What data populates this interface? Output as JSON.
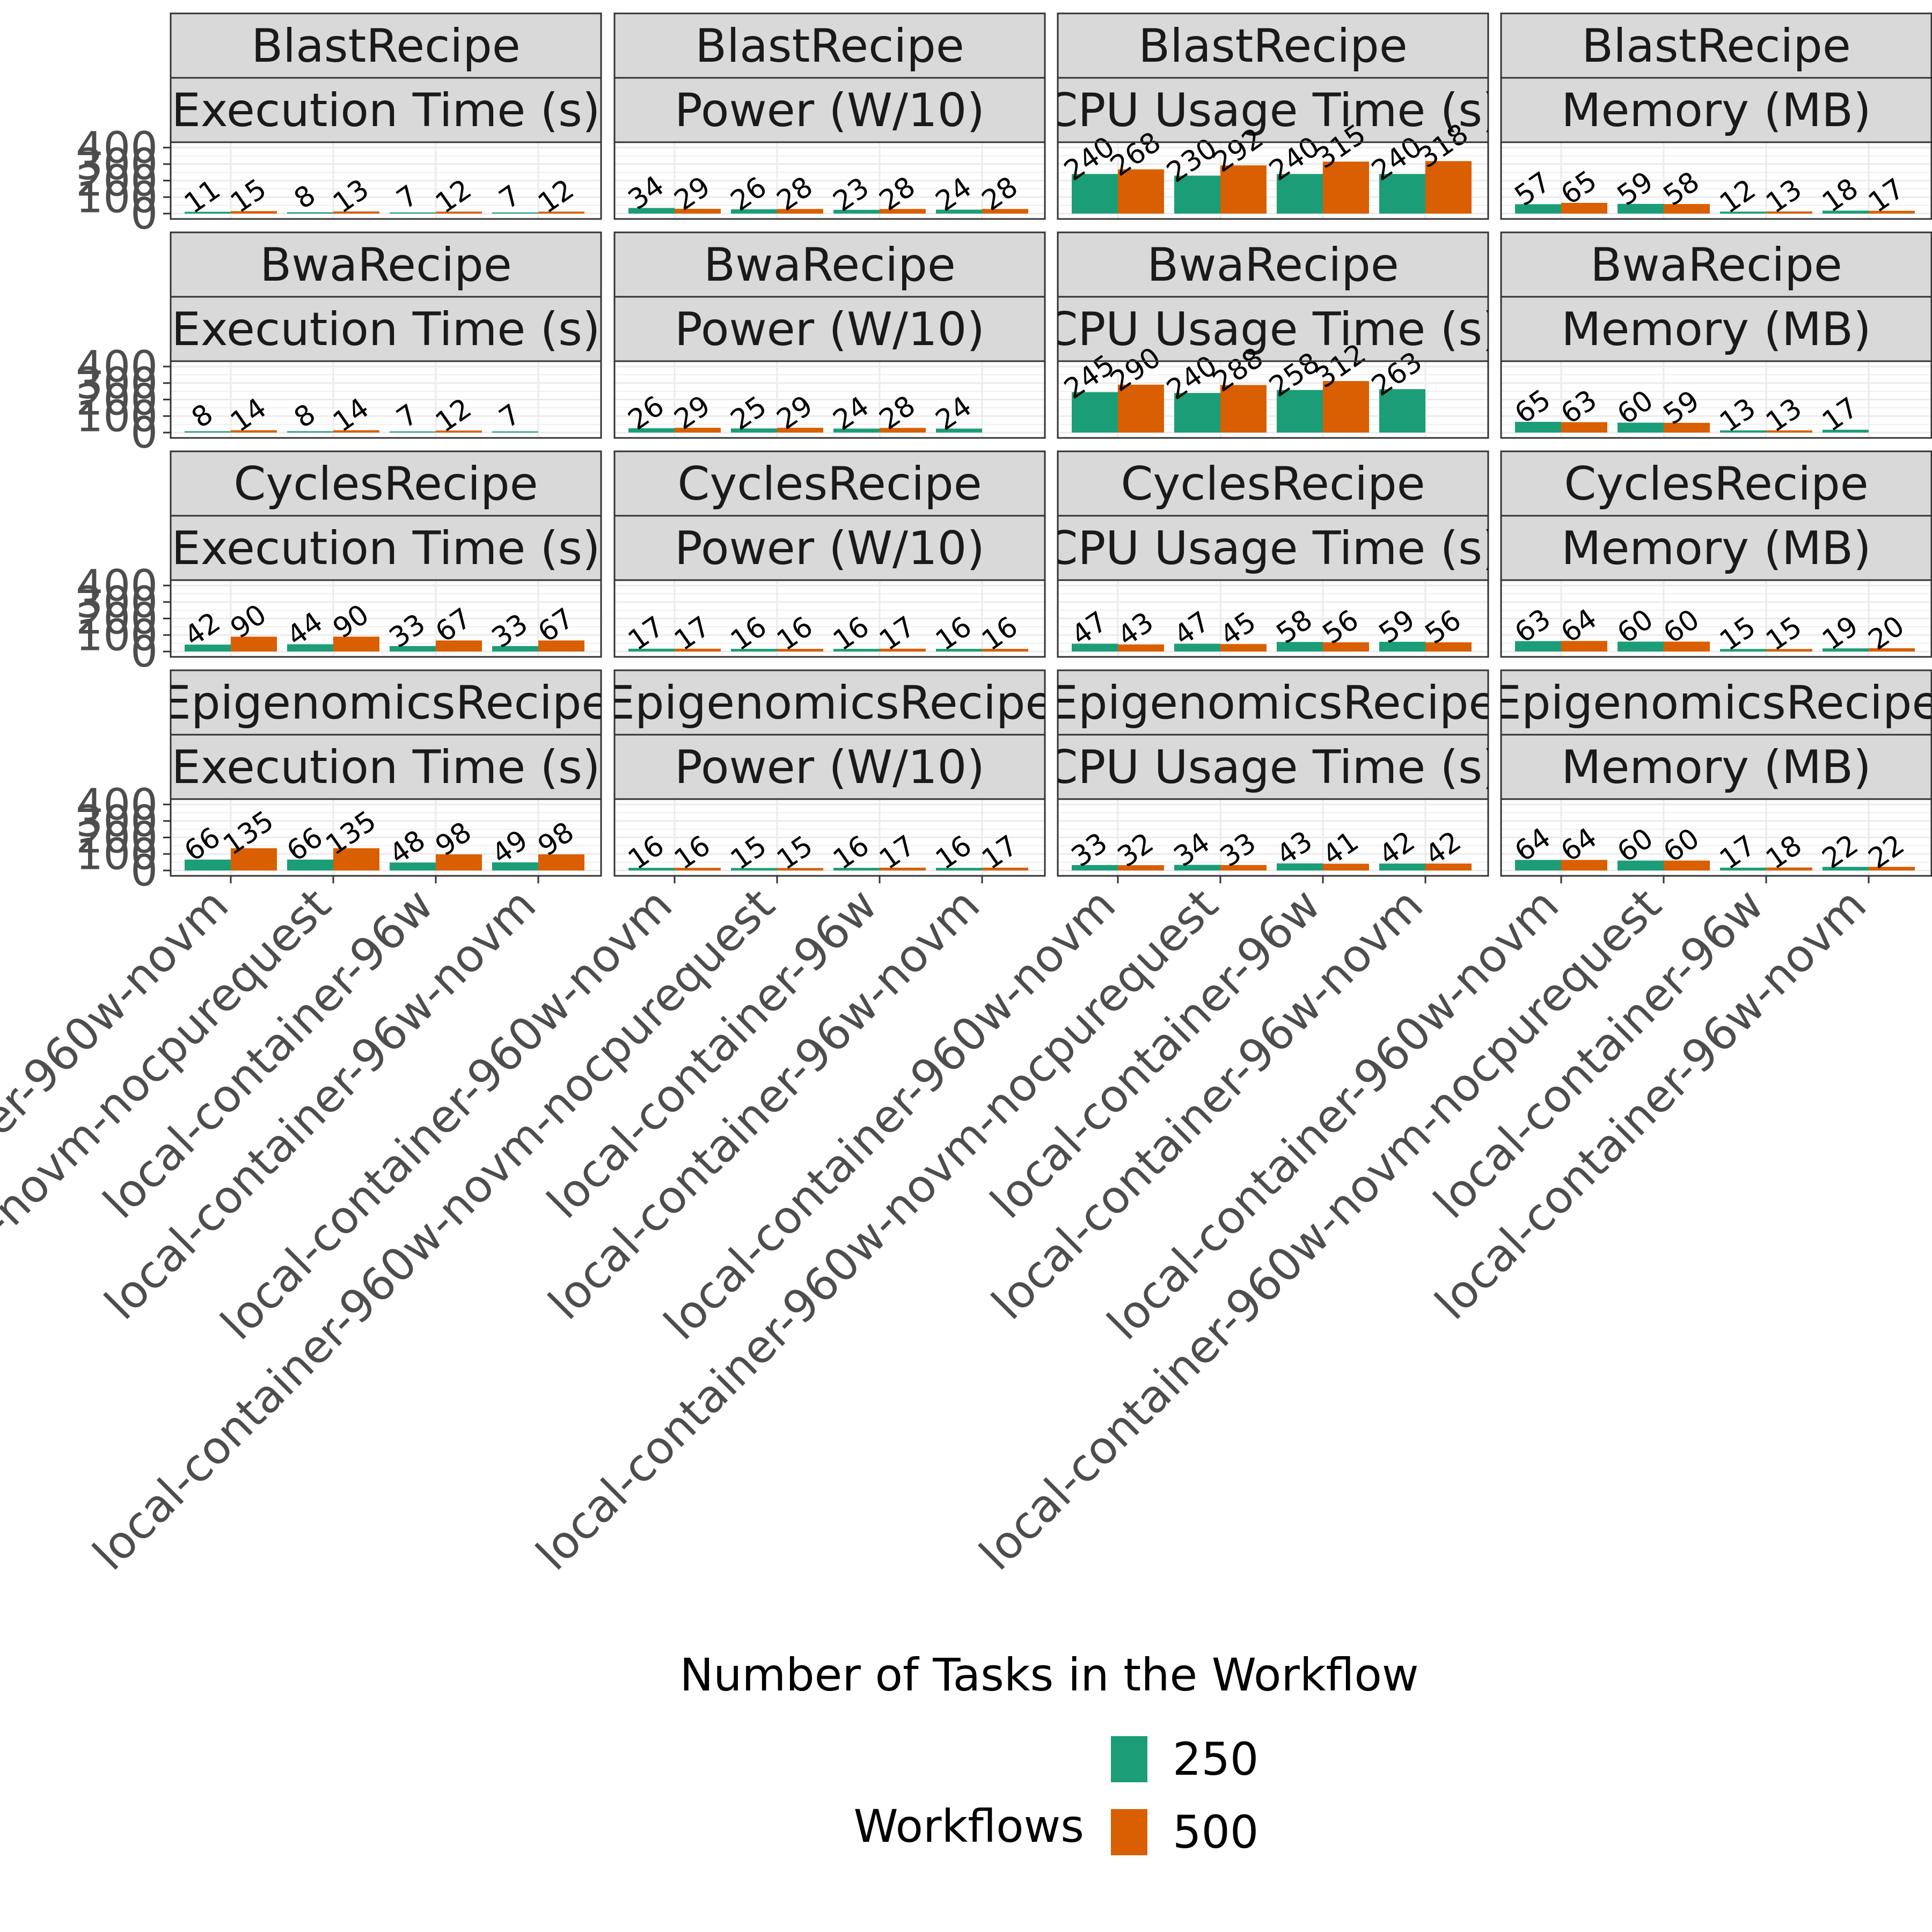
{
  "chart_data": {
    "type": "bar",
    "layout": "faceted-grid",
    "x_title": "Number of Tasks in the Workflow",
    "categories": [
      "local-container-960w-novm",
      "local-container-960w-novm-nocpurequest",
      "local-container-96w",
      "local-container-96w-novm"
    ],
    "rows": [
      "BlastRecipe",
      "BwaRecipe",
      "CyclesRecipe",
      "EpigenomicsRecipe"
    ],
    "columns": [
      "Execution Time (s)",
      "Power (W/10)",
      "CPU Usage Time (s)",
      "Memory (MB)"
    ],
    "ylim": [
      0,
      400
    ],
    "yticks": [
      0,
      100,
      200,
      300,
      400
    ],
    "grid": true,
    "legend": {
      "title": "Workflows",
      "position": "bottom",
      "entries": [
        {
          "name": "250",
          "color": "#1b9e77"
        },
        {
          "name": "500",
          "color": "#d95f02"
        }
      ]
    },
    "panels": [
      [
        {
          "series": [
            {
              "name": "250",
              "values": [
                11,
                8,
                7,
                7
              ]
            },
            {
              "name": "500",
              "values": [
                15,
                13,
                12,
                12
              ]
            }
          ]
        },
        {
          "series": [
            {
              "name": "250",
              "values": [
                34,
                26,
                23,
                24
              ]
            },
            {
              "name": "500",
              "values": [
                29,
                28,
                28,
                28
              ]
            }
          ]
        },
        {
          "series": [
            {
              "name": "250",
              "values": [
                240,
                230,
                240,
                240
              ]
            },
            {
              "name": "500",
              "values": [
                268,
                292,
                315,
                318
              ]
            }
          ]
        },
        {
          "series": [
            {
              "name": "250",
              "values": [
                57,
                59,
                12,
                18
              ]
            },
            {
              "name": "500",
              "values": [
                65,
                58,
                13,
                17
              ]
            }
          ]
        }
      ],
      [
        {
          "series": [
            {
              "name": "250",
              "values": [
                8,
                8,
                7,
                7
              ]
            },
            {
              "name": "500",
              "values": [
                14,
                14,
                12,
                null
              ]
            }
          ]
        },
        {
          "series": [
            {
              "name": "250",
              "values": [
                26,
                25,
                24,
                24
              ]
            },
            {
              "name": "500",
              "values": [
                29,
                29,
                28,
                null
              ]
            }
          ]
        },
        {
          "series": [
            {
              "name": "250",
              "values": [
                245,
                240,
                258,
                263
              ]
            },
            {
              "name": "500",
              "values": [
                290,
                288,
                312,
                null
              ]
            }
          ]
        },
        {
          "series": [
            {
              "name": "250",
              "values": [
                65,
                60,
                13,
                17
              ]
            },
            {
              "name": "500",
              "values": [
                63,
                59,
                13,
                null
              ]
            }
          ]
        }
      ],
      [
        {
          "series": [
            {
              "name": "250",
              "values": [
                42,
                44,
                33,
                33
              ]
            },
            {
              "name": "500",
              "values": [
                90,
                90,
                67,
                67
              ]
            }
          ]
        },
        {
          "series": [
            {
              "name": "250",
              "values": [
                17,
                16,
                16,
                16
              ]
            },
            {
              "name": "500",
              "values": [
                17,
                16,
                17,
                16
              ]
            }
          ]
        },
        {
          "series": [
            {
              "name": "250",
              "values": [
                47,
                47,
                58,
                59
              ]
            },
            {
              "name": "500",
              "values": [
                43,
                45,
                56,
                56
              ]
            }
          ]
        },
        {
          "series": [
            {
              "name": "250",
              "values": [
                63,
                60,
                15,
                19
              ]
            },
            {
              "name": "500",
              "values": [
                64,
                60,
                15,
                20
              ]
            }
          ]
        }
      ],
      [
        {
          "series": [
            {
              "name": "250",
              "values": [
                66,
                66,
                48,
                49
              ]
            },
            {
              "name": "500",
              "values": [
                135,
                135,
                98,
                98
              ]
            }
          ]
        },
        {
          "series": [
            {
              "name": "250",
              "values": [
                16,
                15,
                16,
                16
              ]
            },
            {
              "name": "500",
              "values": [
                16,
                15,
                17,
                17
              ]
            }
          ]
        },
        {
          "series": [
            {
              "name": "250",
              "values": [
                33,
                34,
                43,
                42
              ]
            },
            {
              "name": "500",
              "values": [
                32,
                33,
                41,
                42
              ]
            }
          ]
        },
        {
          "series": [
            {
              "name": "250",
              "values": [
                64,
                60,
                17,
                22
              ]
            },
            {
              "name": "500",
              "values": [
                64,
                60,
                18,
                22
              ]
            }
          ]
        }
      ]
    ]
  }
}
